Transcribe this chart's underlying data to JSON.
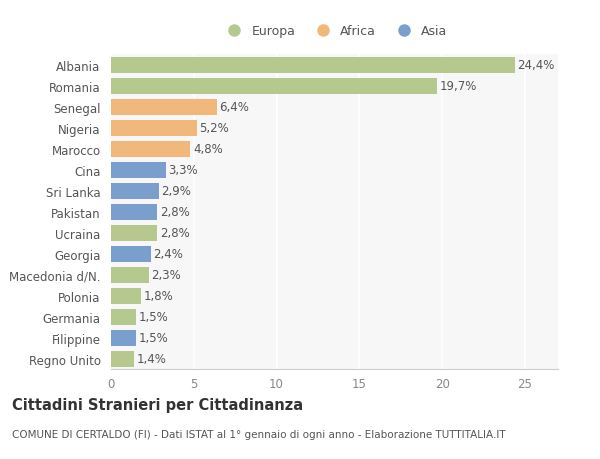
{
  "categories": [
    "Albania",
    "Romania",
    "Senegal",
    "Nigeria",
    "Marocco",
    "Cina",
    "Sri Lanka",
    "Pakistan",
    "Ucraina",
    "Georgia",
    "Macedonia d/N.",
    "Polonia",
    "Germania",
    "Filippine",
    "Regno Unito"
  ],
  "values": [
    24.4,
    19.7,
    6.4,
    5.2,
    4.8,
    3.3,
    2.9,
    2.8,
    2.8,
    2.4,
    2.3,
    1.8,
    1.5,
    1.5,
    1.4
  ],
  "labels": [
    "24,4%",
    "19,7%",
    "6,4%",
    "5,2%",
    "4,8%",
    "3,3%",
    "2,9%",
    "2,8%",
    "2,8%",
    "2,4%",
    "2,3%",
    "1,8%",
    "1,5%",
    "1,5%",
    "1,4%"
  ],
  "continent": [
    "Europa",
    "Europa",
    "Africa",
    "Africa",
    "Africa",
    "Asia",
    "Asia",
    "Asia",
    "Europa",
    "Asia",
    "Europa",
    "Europa",
    "Europa",
    "Asia",
    "Europa"
  ],
  "colors": {
    "Europa": "#b5c98e",
    "Africa": "#f0b87a",
    "Asia": "#7b9fcc"
  },
  "bg_color": "#ffffff",
  "plot_bg_color": "#f7f7f7",
  "grid_color": "#ffffff",
  "title": "Cittadini Stranieri per Cittadinanza",
  "subtitle": "COMUNE DI CERTALDO (FI) - Dati ISTAT al 1° gennaio di ogni anno - Elaborazione TUTTITALIA.IT",
  "xlim": [
    0,
    27
  ],
  "xticks": [
    0,
    5,
    10,
    15,
    20,
    25
  ],
  "bar_height": 0.75,
  "label_fontsize": 8.5,
  "tick_fontsize": 8.5,
  "ytick_fontsize": 8.5,
  "title_fontsize": 10.5,
  "subtitle_fontsize": 7.5,
  "label_color": "#555555",
  "tick_color": "#888888",
  "legend_fontsize": 9
}
